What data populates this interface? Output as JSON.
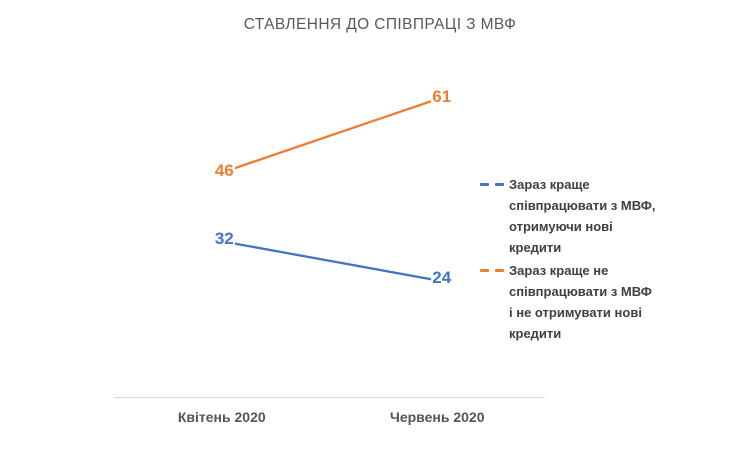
{
  "chart_data": {
    "type": "line",
    "title": "СТАВЛЕННЯ ДО СПІВПРАЦІ З МВФ",
    "categories": [
      "Квітень 2020",
      "Червень 2020"
    ],
    "series": [
      {
        "name": "Зараз краще співпрацювати з МВФ, отримуючи нові кредити",
        "values": [
          32,
          24
        ],
        "color": "#4472C4"
      },
      {
        "name": "Зараз краще не співпрацювати з МВФ і не отримувати нові кредити",
        "values": [
          46,
          61
        ],
        "color": "#ED7D31"
      }
    ],
    "ylim": [
      0,
      70
    ],
    "grid": false,
    "data_labels": true,
    "legend_position": "right"
  },
  "legend": {
    "text_color": "#404040",
    "items": [
      {
        "marker": "dashed-line",
        "color": "#4472C4",
        "lines": [
          "Зараз краще",
          "співпрацювати з МВФ,",
          "отримуючи нові",
          "кредити"
        ]
      },
      {
        "marker": "dashed-line",
        "color": "#ED7D31",
        "lines": [
          "Зараз краще не",
          "співпрацювати з МВФ",
          "і не отримувати нові",
          "кредити"
        ]
      }
    ]
  },
  "axis": {
    "line_color": "#D9D9D9",
    "label_color": "#555555",
    "title_color": "#595959"
  }
}
